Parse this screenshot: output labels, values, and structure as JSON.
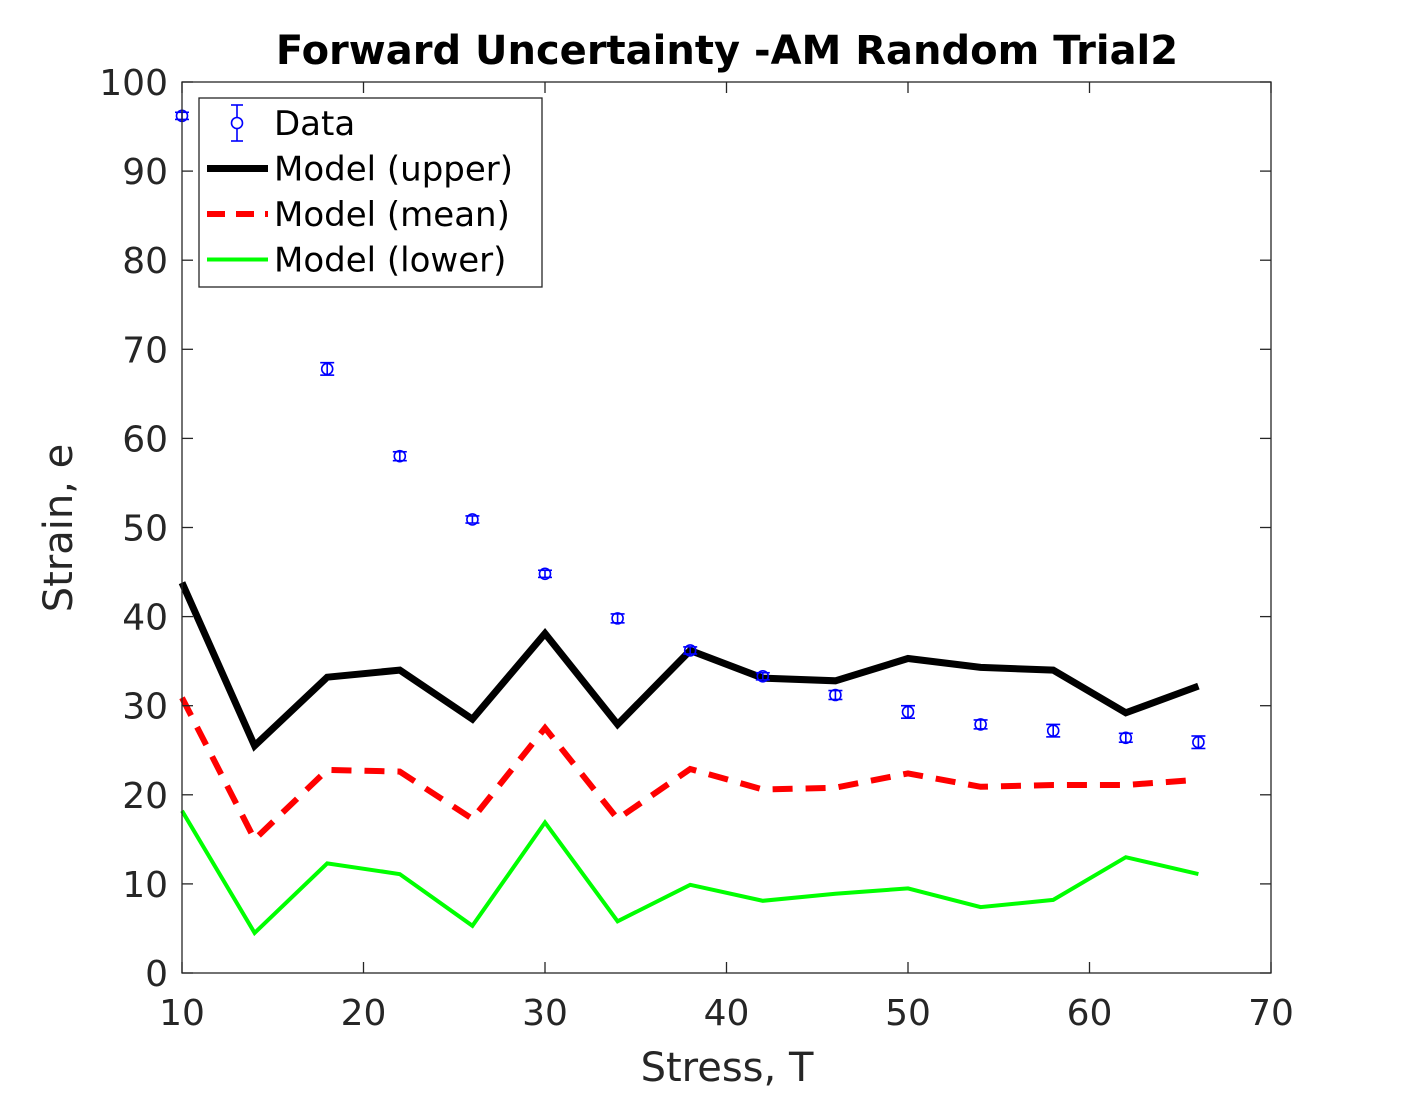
{
  "chart_data": {
    "type": "line",
    "title": "Forward Uncertainty -AM Random Trial2",
    "xlabel": "Stress, T",
    "ylabel": "Strain, e",
    "xlim": [
      10,
      70
    ],
    "ylim": [
      0,
      100
    ],
    "xticks": [
      10,
      20,
      30,
      40,
      50,
      60,
      70
    ],
    "yticks": [
      0,
      10,
      20,
      30,
      40,
      50,
      60,
      70,
      80,
      90,
      100
    ],
    "grid": false,
    "legend_position": "top-left",
    "x": [
      10,
      14,
      18,
      22,
      26,
      30,
      34,
      38,
      42,
      46,
      50,
      54,
      58,
      62,
      66
    ],
    "series": [
      {
        "name": "Data",
        "style": "errorbar-circle",
        "color": "#0000ff",
        "x": [
          10,
          18,
          22,
          26,
          30,
          34,
          38,
          42,
          46,
          50,
          54,
          58,
          62,
          66
        ],
        "values": [
          96.2,
          67.8,
          58.0,
          50.9,
          44.8,
          39.8,
          36.2,
          33.3,
          31.2,
          29.3,
          27.9,
          27.2,
          26.4,
          25.9
        ],
        "errors": [
          0.4,
          0.7,
          0.5,
          0.4,
          0.4,
          0.5,
          0.4,
          0.4,
          0.5,
          0.7,
          0.5,
          0.7,
          0.5,
          0.7
        ]
      },
      {
        "name": "Model (upper)",
        "style": "solid-thick",
        "color": "#000000",
        "values": [
          43.8,
          25.5,
          33.2,
          34.0,
          28.5,
          38.1,
          27.9,
          36.2,
          33.1,
          32.8,
          35.3,
          34.3,
          34.0,
          29.2,
          32.2
        ]
      },
      {
        "name": "Model (mean)",
        "style": "dashed",
        "color": "#ff0000",
        "values": [
          30.9,
          15.0,
          22.8,
          22.6,
          17.3,
          27.5,
          17.3,
          22.9,
          20.6,
          20.8,
          22.4,
          20.9,
          21.1,
          21.1,
          21.7
        ]
      },
      {
        "name": "Model (lower)",
        "style": "solid-thin",
        "color": "#00ff00",
        "values": [
          18.2,
          4.5,
          12.3,
          11.1,
          5.3,
          16.9,
          5.8,
          9.9,
          8.1,
          8.9,
          9.5,
          7.4,
          8.2,
          13.0,
          11.1
        ]
      }
    ]
  }
}
